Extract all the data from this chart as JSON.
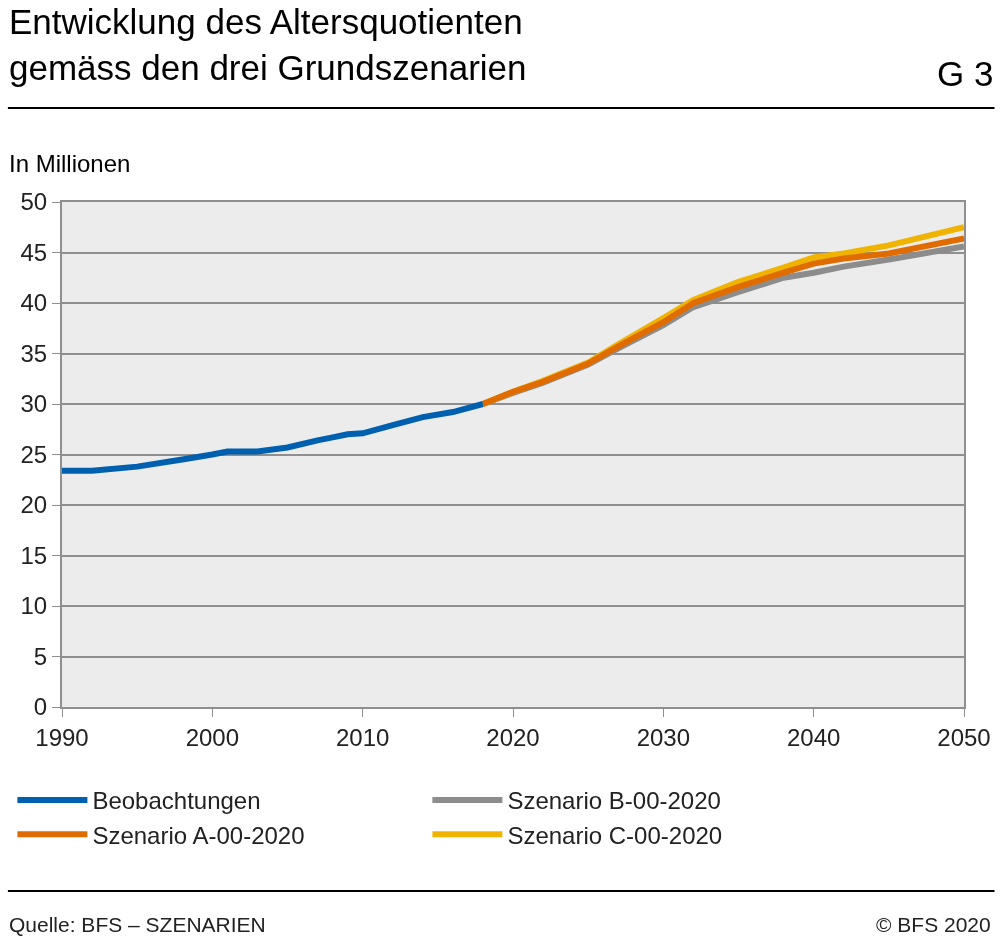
{
  "chart_data": {
    "type": "line",
    "title": "Entwicklung des Altersquotienten\ngemäss den drei Grundszenarien",
    "subtitle": "G 3",
    "ylabel": "In Millionen",
    "annotations": [
      "Quelle: BFS – SZENARIEN",
      "© BFS 2020"
    ],
    "xlim": [
      1990,
      2050
    ],
    "xticks": [
      1990,
      2000,
      2010,
      2020,
      2030,
      2040,
      2050
    ],
    "ylim": [
      0,
      50
    ],
    "yticks": [
      0,
      5,
      10,
      15,
      20,
      25,
      30,
      35,
      40,
      45,
      50
    ],
    "grid": "y",
    "legend": "bottom",
    "series": [
      {
        "name": "Szenario B-00-2020",
        "color": "#8c8c8c",
        "x": [
          2018,
          2020,
          2022,
          2025,
          2027,
          2030,
          2032,
          2035,
          2038,
          2040,
          2042,
          2045,
          2050
        ],
        "values": [
          30.0,
          31.1,
          32.1,
          33.9,
          35.5,
          37.8,
          39.6,
          41.1,
          42.5,
          43.0,
          43.6,
          44.3,
          45.6
        ]
      },
      {
        "name": "Szenario C-00-2020",
        "color": "#f0b400",
        "x": [
          2018,
          2020,
          2022,
          2025,
          2027,
          2030,
          2032,
          2035,
          2038,
          2040,
          2042,
          2045,
          2050
        ],
        "values": [
          30.0,
          31.2,
          32.3,
          34.1,
          35.9,
          38.5,
          40.3,
          42.1,
          43.5,
          44.5,
          44.9,
          45.7,
          47.5
        ]
      },
      {
        "name": "Szenario A-00-2020",
        "color": "#e06c00",
        "x": [
          2018,
          2020,
          2022,
          2025,
          2027,
          2030,
          2032,
          2035,
          2038,
          2040,
          2042,
          2045,
          2050
        ],
        "values": [
          30.0,
          31.2,
          32.2,
          34.0,
          35.7,
          38.1,
          40.0,
          41.6,
          43.0,
          43.9,
          44.4,
          44.9,
          46.4
        ]
      },
      {
        "name": "Beobachtungen",
        "color": "#0060b0",
        "x": [
          1990,
          1992,
          1995,
          1998,
          2000,
          2001,
          2003,
          2005,
          2007,
          2008,
          2009,
          2010,
          2012,
          2014,
          2016,
          2018
        ],
        "values": [
          23.4,
          23.4,
          23.8,
          24.5,
          25.0,
          25.3,
          25.3,
          25.7,
          26.4,
          26.7,
          27.0,
          27.1,
          27.9,
          28.7,
          29.2,
          30.0
        ]
      }
    ]
  }
}
